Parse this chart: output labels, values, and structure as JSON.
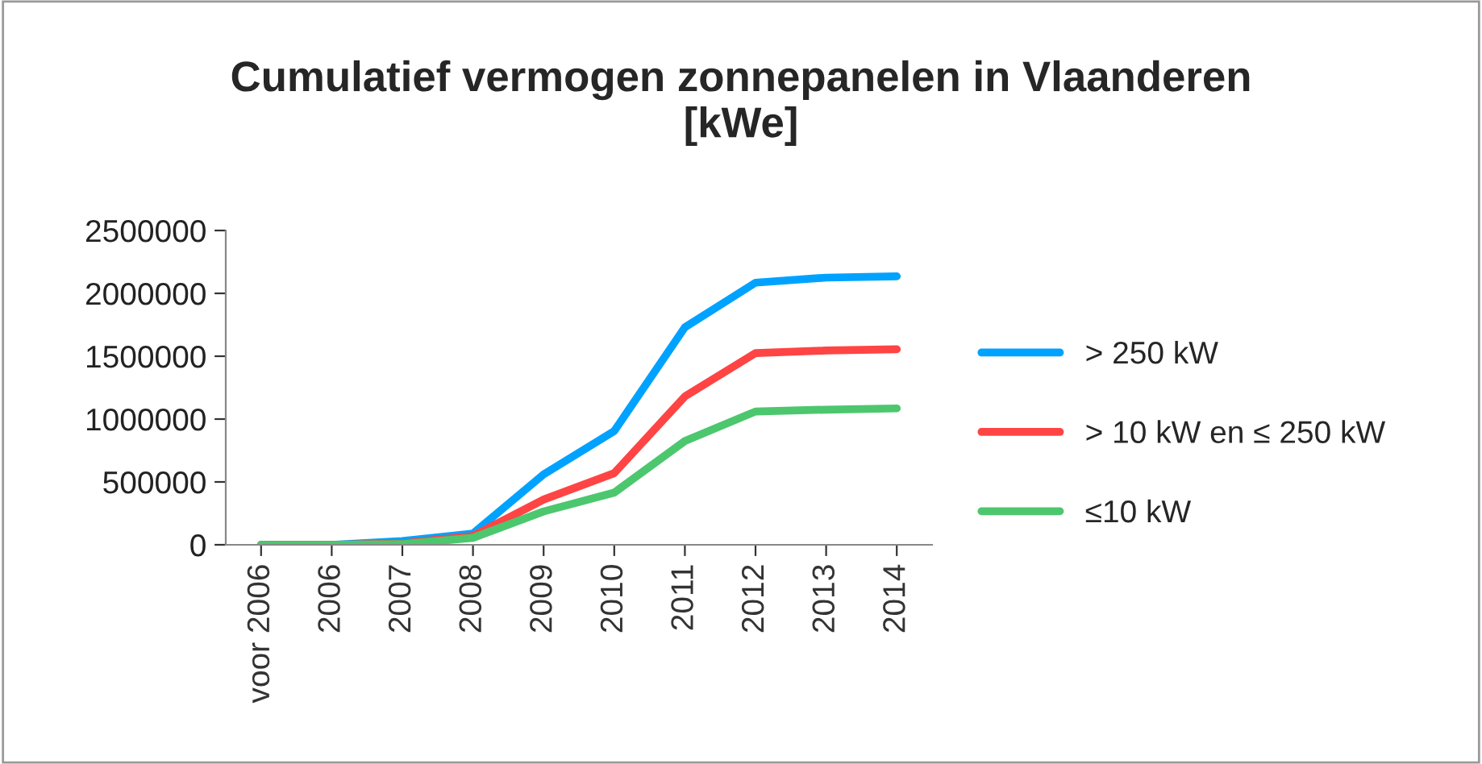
{
  "chart_data": {
    "type": "line",
    "title": "Cumulatief vermogen zonnepanelen in Vlaanderen\n[kWe]",
    "categories": [
      "voor 2006",
      "2006",
      "2007",
      "2008",
      "2009",
      "2010",
      "2011",
      "2012",
      "2013",
      "2014"
    ],
    "series": [
      {
        "name": "> 250 kW",
        "color": "#00a2ff",
        "values": [
          0,
          0,
          30000,
          90000,
          560000,
          905000,
          1730000,
          2085000,
          2125000,
          2135000
        ]
      },
      {
        "name": "> 10 kW en ≤ 250 kW",
        "color": "#ff4444",
        "values": [
          0,
          0,
          10000,
          70000,
          360000,
          570000,
          1180000,
          1525000,
          1545000,
          1555000
        ]
      },
      {
        "name": "≤10 kW",
        "color": "#4cc76e",
        "values": [
          0,
          0,
          5000,
          55000,
          265000,
          415000,
          825000,
          1060000,
          1075000,
          1085000
        ]
      }
    ],
    "ylim": [
      0,
      2500000
    ],
    "yticks": [
      0,
      500000,
      1000000,
      1500000,
      2000000,
      2500000
    ],
    "grid": false,
    "legend": "right",
    "marker": "none",
    "line_style": "solid"
  }
}
